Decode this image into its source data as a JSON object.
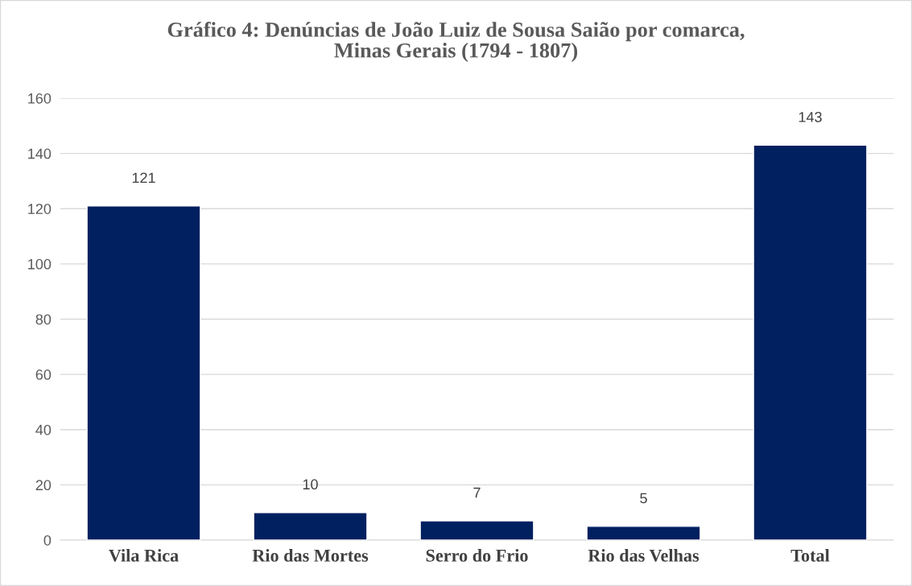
{
  "chart_data": {
    "type": "bar",
    "title": "Gráfico 4: Denúncias de João Luiz de Sousa Saião por comarca,\nMinas Gerais (1794 - 1807)",
    "categories": [
      "Vila Rica",
      "Rio das Mortes",
      "Serro do Frio",
      "Rio das Velhas",
      "Total"
    ],
    "values": [
      121,
      10,
      7,
      5,
      143
    ],
    "color": "#002060",
    "ylim": [
      0,
      160
    ],
    "yticks": [
      0,
      20,
      40,
      60,
      80,
      100,
      120,
      140,
      160
    ],
    "grid": "y",
    "data_labels": true
  }
}
